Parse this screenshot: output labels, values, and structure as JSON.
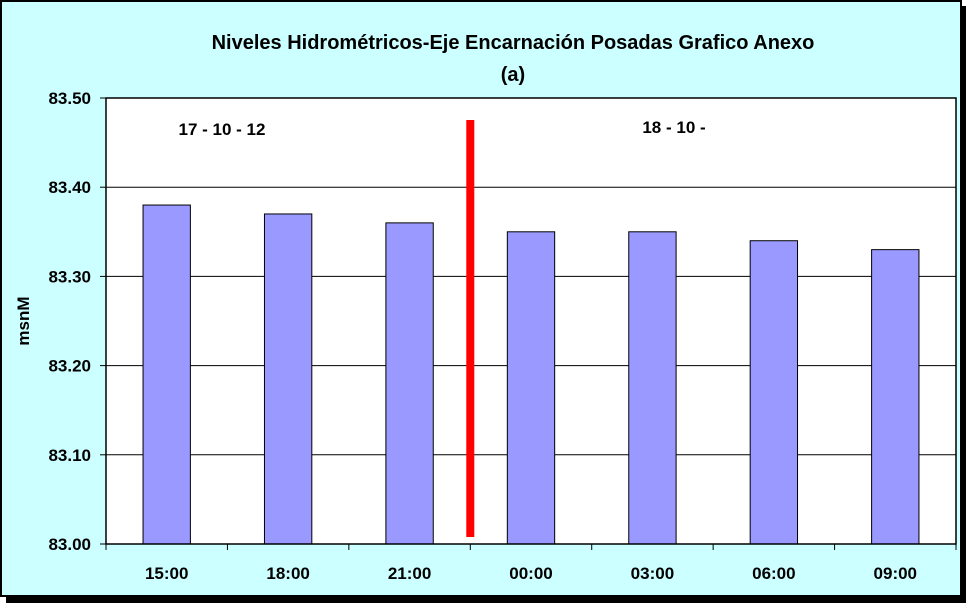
{
  "chart_data": {
    "type": "bar",
    "title": "Niveles Hidrométricos-Eje Encarnación Posadas Grafico Anexo",
    "subtitle": "(a)",
    "xlabel": "",
    "ylabel": "msnM",
    "categories": [
      "15:00",
      "18:00",
      "21:00",
      "00:00",
      "03:00",
      "06:00",
      "09:00"
    ],
    "values": [
      83.38,
      83.37,
      83.36,
      83.35,
      83.35,
      83.34,
      83.33
    ],
    "ylim": [
      83.0,
      83.5
    ],
    "yticks": [
      "83.00",
      "83.10",
      "83.20",
      "83.30",
      "83.40",
      "83.50"
    ],
    "grid": true,
    "legend": "none",
    "annotations": [
      {
        "text": "17 - 10 - 12"
      },
      {
        "text": "18 - 10 -"
      }
    ],
    "divider_after_category": "21:00",
    "colors": {
      "background": "#ccffff",
      "bar": "#9999ff",
      "divider": "#ff0000",
      "shadow": "#000000"
    }
  }
}
